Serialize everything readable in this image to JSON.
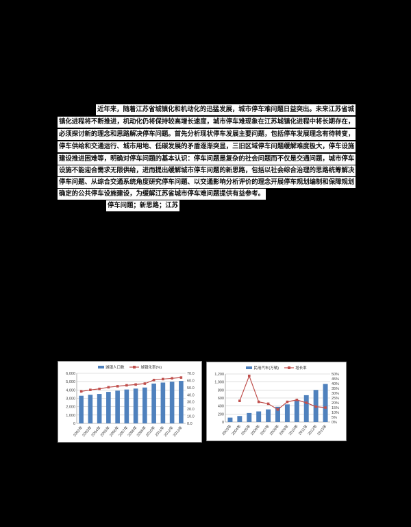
{
  "page": {
    "background": "#000000",
    "abstract_lines": [
      "近年来，随着江苏省城镇化和机动化的迅猛发展，城市停车难问题日益突出。未来江苏省城",
      "镇化进程将不断推进，机动化仍将保持较高增长速度，城市停车难现象在江苏城镇化进程中将长期存在，",
      "必须探讨新的理念和思路解决停车问题。首先分析现状停车发展主要问题，包括停车发展理念有待转变，",
      "停车供给和交通运行、城市用地、低碳发展的矛盾逐渐突显，三旧区域停车问题缓解难度极大，停车设施",
      "建设推进困难等，明确对停车问题的基本认识：停车问题是复杂的社会问题而不仅是交通问题，城市停车",
      "设施不能迎合需求无限供给，进而提出缓解城市停车问题的新思路，包括以社会综合治理的思路统筹解决",
      "停车问题、从综合交通系统角度研究停车问题、以交通影响分析评价的理念开展停车规划编制和保障规划",
      "确定的公共停车设施建设，为缓解江苏省城市停车难问题提供有益参考。"
    ],
    "keywords": "停车问题；新思路；江苏"
  },
  "chart_data": [
    {
      "type": "bar",
      "title": "",
      "categories": [
        "2002年",
        "2003年",
        "2004年",
        "2005年",
        "2006年",
        "2007年",
        "2008年",
        "2009年",
        "2010年",
        "2011年",
        "2012年",
        "2013年"
      ],
      "series": [
        {
          "name": "城镇人口数",
          "type": "bar",
          "axis": "left",
          "color": "#4F81BD",
          "values": [
            3312,
            3423,
            3528,
            3775,
            3917,
            4057,
            4168,
            4295,
            4767,
            4889,
            4990,
            5090
          ]
        },
        {
          "name": "城镇化率(%)",
          "type": "line",
          "axis": "right",
          "color": "#C0504D",
          "values": [
            44.7,
            46.8,
            48.2,
            50.5,
            51.9,
            53.2,
            54.3,
            55.6,
            60.6,
            61.9,
            63.0,
            64.1
          ]
        }
      ],
      "left_axis": {
        "min": 0,
        "max": 6000,
        "ticks": [
          "6,000",
          "5,000",
          "4,000",
          "3,000",
          "2,000",
          "1,000",
          "0"
        ]
      },
      "right_axis": {
        "min": 0,
        "max": 70,
        "ticks": [
          "70.0",
          "60.0",
          "50.0",
          "40.0",
          "30.0",
          "20.0",
          "10.0",
          "0.0"
        ]
      },
      "legend_position": "top",
      "grid": true
    },
    {
      "type": "bar",
      "title": "",
      "categories": [
        "2003年",
        "2004年",
        "2005年",
        "2006年",
        "2007年",
        "2008年",
        "2009年",
        "2010年",
        "2011年",
        "2012年",
        "2013年"
      ],
      "series": [
        {
          "name": "民用汽车(万辆)",
          "type": "bar",
          "axis": "left",
          "color": "#4F81BD",
          "values": [
            110,
            150,
            225,
            265,
            315,
            380,
            440,
            550,
            670,
            800,
            950
          ]
        },
        {
          "name": "增长率",
          "type": "line",
          "axis": "right",
          "color": "#C0504D",
          "values": [
            null,
            22,
            48,
            21,
            19,
            13,
            21,
            23,
            20,
            16,
            15
          ]
        }
      ],
      "left_axis": {
        "min": 0,
        "max": 1200,
        "ticks": [
          "1,200",
          "1,000",
          "800",
          "600",
          "400",
          "200",
          "0"
        ]
      },
      "right_axis": {
        "min": 0,
        "max": 50,
        "ticks": [
          "50%",
          "45%",
          "40%",
          "35%",
          "30%",
          "25%",
          "20%",
          "15%",
          "10%",
          "5%",
          "0%"
        ]
      },
      "legend_position": "top",
      "grid": true
    }
  ]
}
